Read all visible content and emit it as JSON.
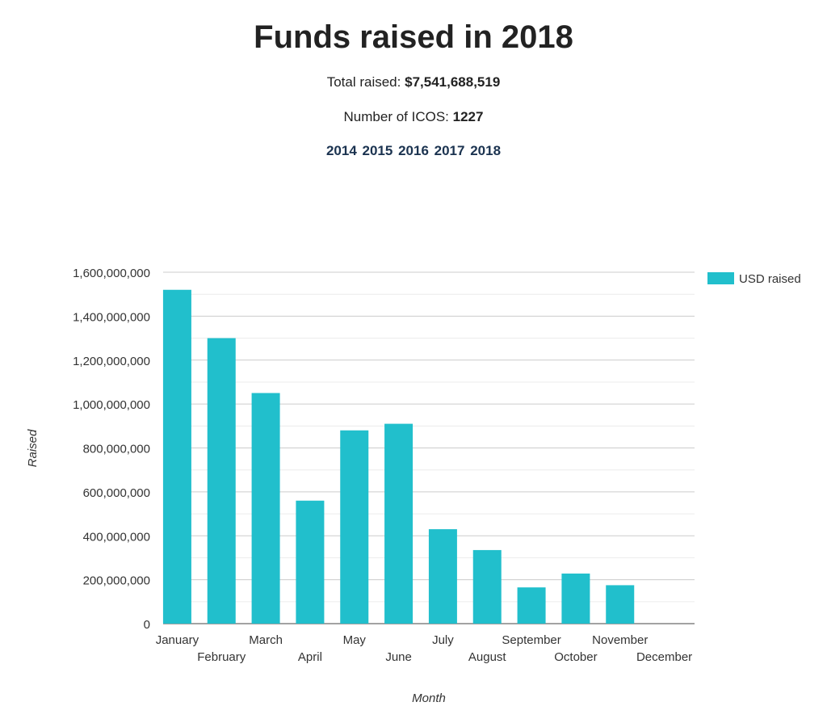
{
  "header": {
    "title": "Funds raised in 2018",
    "total_label": "Total raised:",
    "total_value": "$7,541,688,519",
    "icos_label": "Number of ICOS:",
    "icos_value": "1227",
    "years": [
      "2014",
      "2015",
      "2016",
      "2017",
      "2018"
    ]
  },
  "chart_data": {
    "type": "bar",
    "categories": [
      "January",
      "February",
      "March",
      "April",
      "May",
      "June",
      "July",
      "August",
      "September",
      "October",
      "November",
      "December"
    ],
    "series": [
      {
        "name": "USD raised",
        "values": [
          1520000000,
          1300000000,
          1050000000,
          560000000,
          880000000,
          910000000,
          430000000,
          335000000,
          165000000,
          228000000,
          175000000,
          0
        ]
      }
    ],
    "xlabel": "Month",
    "ylabel": "Raised",
    "ylim": [
      0,
      1600000000
    ],
    "yticks": [
      0,
      200000000,
      400000000,
      600000000,
      800000000,
      1000000000,
      1200000000,
      1400000000,
      1600000000
    ],
    "ytick_labels": [
      "0",
      "200,000,000",
      "400,000,000",
      "600,000,000",
      "800,000,000",
      "1,000,000,000",
      "1,200,000,000",
      "1,400,000,000",
      "1,600,000,000"
    ],
    "grid": true,
    "legend": "top-right",
    "color": "#21bfcc"
  }
}
